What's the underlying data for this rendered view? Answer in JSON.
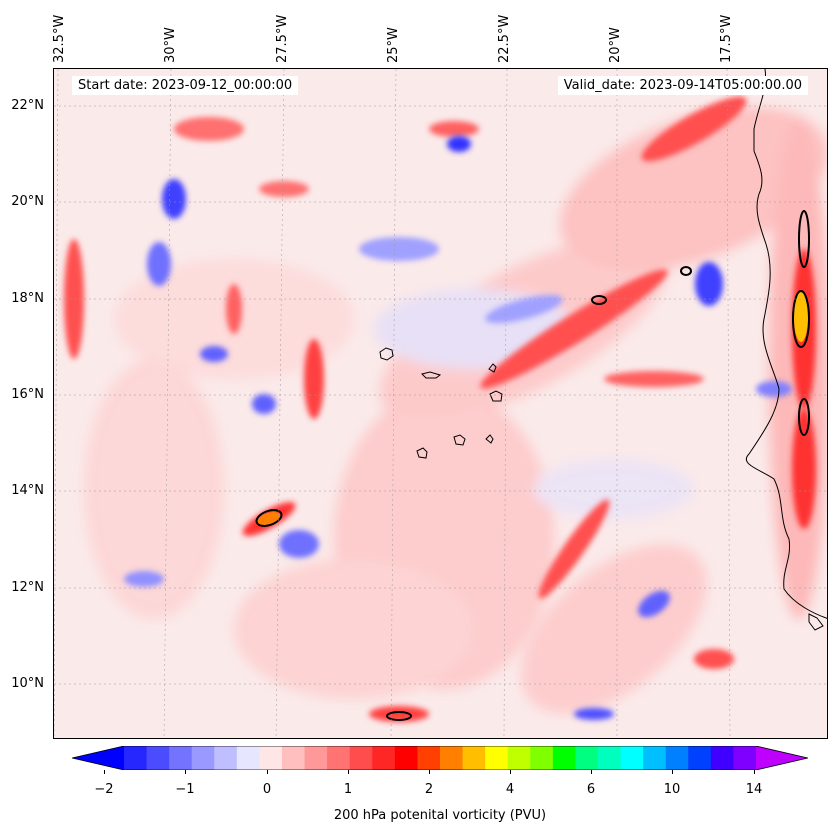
{
  "header": {
    "start_date": "Start date: 2023-09-12_00:00:00",
    "valid_date": "Valid_date: 2023-09-14T05:00:00.00"
  },
  "axes": {
    "longitude_labels": [
      "32.5°W",
      "30°W",
      "27.5°W",
      "25°W",
      "22.5°W",
      "20°W",
      "17.5°W"
    ],
    "latitude_labels": [
      "22°N",
      "20°N",
      "18°N",
      "16°N",
      "14°N",
      "12°N",
      "10°N"
    ]
  },
  "colorbar": {
    "label": "200 hPa potenital vorticity (PVU)",
    "tick_labels": [
      "−2",
      "−1",
      "0",
      "1",
      "2",
      "4",
      "6",
      "10",
      "14"
    ],
    "colors": [
      "#0000ff",
      "#2626ff",
      "#4c4cff",
      "#7373ff",
      "#9999ff",
      "#bfbfff",
      "#e6e6ff",
      "#ffe6e6",
      "#ffbfbf",
      "#ff9999",
      "#ff7373",
      "#ff4c4c",
      "#ff2626",
      "#ff0000",
      "#ff4000",
      "#ff8000",
      "#ffbf00",
      "#ffff00",
      "#bfff00",
      "#80ff00",
      "#00ff00",
      "#00ff80",
      "#00ffbf",
      "#00ffff",
      "#00bfff",
      "#0080ff",
      "#0040ff",
      "#4000ff",
      "#8000ff",
      "#bf00ff"
    ]
  },
  "map": {
    "background": "#fbeaea",
    "positive_color": "#ff6060",
    "negative_color": "#6060ff"
  }
}
